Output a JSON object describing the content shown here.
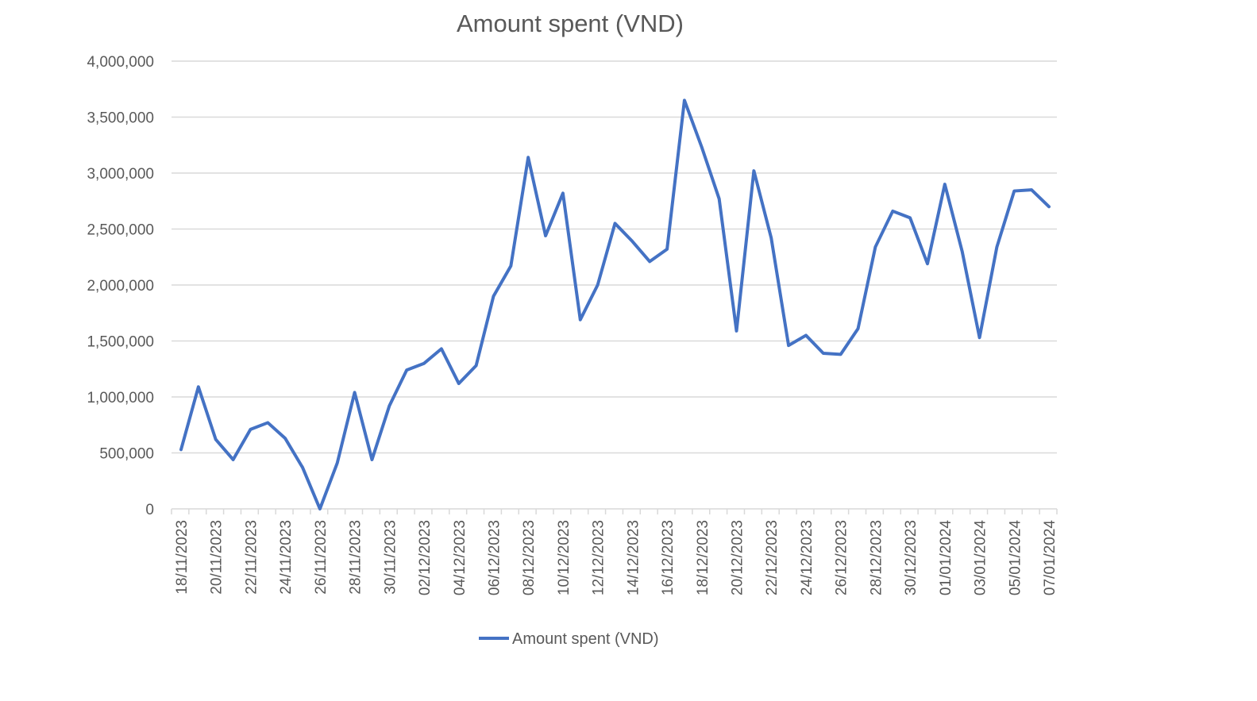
{
  "chart_data": {
    "type": "line",
    "title": "Amount spent (VND)",
    "xlabel": "",
    "ylabel": "",
    "ylim": [
      0,
      4000000
    ],
    "y_ticks": [
      0,
      500000,
      1000000,
      1500000,
      2000000,
      2500000,
      3000000,
      3500000,
      4000000
    ],
    "y_tick_labels": [
      "0",
      "500,000",
      "1,000,000",
      "1,500,000",
      "2,000,000",
      "2,500,000",
      "3,000,000",
      "3,500,000",
      "4,000,000"
    ],
    "grid": "horizontal",
    "legend_position": "bottom",
    "line_color": "#4472C4",
    "grid_color": "#D9D9D9",
    "x": [
      "18/11/2023",
      "19/11/2023",
      "20/11/2023",
      "21/11/2023",
      "22/11/2023",
      "23/11/2023",
      "24/11/2023",
      "25/11/2023",
      "26/11/2023",
      "27/11/2023",
      "28/11/2023",
      "29/11/2023",
      "30/11/2023",
      "01/12/2023",
      "02/12/2023",
      "03/12/2023",
      "04/12/2023",
      "05/12/2023",
      "06/12/2023",
      "07/12/2023",
      "08/12/2023",
      "09/12/2023",
      "10/12/2023",
      "11/12/2023",
      "12/12/2023",
      "13/12/2023",
      "14/12/2023",
      "15/12/2023",
      "16/12/2023",
      "17/12/2023",
      "18/12/2023",
      "19/12/2023",
      "20/12/2023",
      "21/12/2023",
      "22/12/2023",
      "23/12/2023",
      "24/12/2023",
      "25/12/2023",
      "26/12/2023",
      "27/12/2023",
      "28/12/2023",
      "29/12/2023",
      "30/12/2023",
      "31/12/2023",
      "01/01/2024",
      "02/01/2024",
      "03/01/2024",
      "04/01/2024",
      "05/01/2024",
      "06/01/2024",
      "07/01/2024"
    ],
    "x_tick_labels": [
      "18/11/2023",
      "20/11/2023",
      "22/11/2023",
      "24/11/2023",
      "26/11/2023",
      "28/11/2023",
      "30/11/2023",
      "02/12/2023",
      "04/12/2023",
      "06/12/2023",
      "08/12/2023",
      "10/12/2023",
      "12/12/2023",
      "14/12/2023",
      "16/12/2023",
      "18/12/2023",
      "20/12/2023",
      "22/12/2023",
      "24/12/2023",
      "26/12/2023",
      "28/12/2023",
      "30/12/2023",
      "01/01/2024",
      "03/01/2024",
      "05/01/2024",
      "07/01/2024"
    ],
    "series": [
      {
        "name": "Amount spent (VND)",
        "values": [
          530000,
          1090000,
          620000,
          440000,
          710000,
          770000,
          630000,
          370000,
          0,
          410000,
          1040000,
          440000,
          920000,
          1240000,
          1300000,
          1430000,
          1120000,
          1280000,
          1900000,
          2170000,
          3140000,
          2440000,
          2820000,
          1690000,
          2000000,
          2550000,
          2390000,
          2210000,
          2320000,
          3650000,
          3230000,
          2770000,
          1590000,
          3020000,
          2420000,
          1460000,
          1550000,
          1390000,
          1380000,
          1610000,
          2340000,
          2660000,
          2600000,
          2190000,
          2900000,
          2300000,
          1530000,
          2340000,
          2840000,
          2850000,
          2700000
        ]
      }
    ]
  }
}
